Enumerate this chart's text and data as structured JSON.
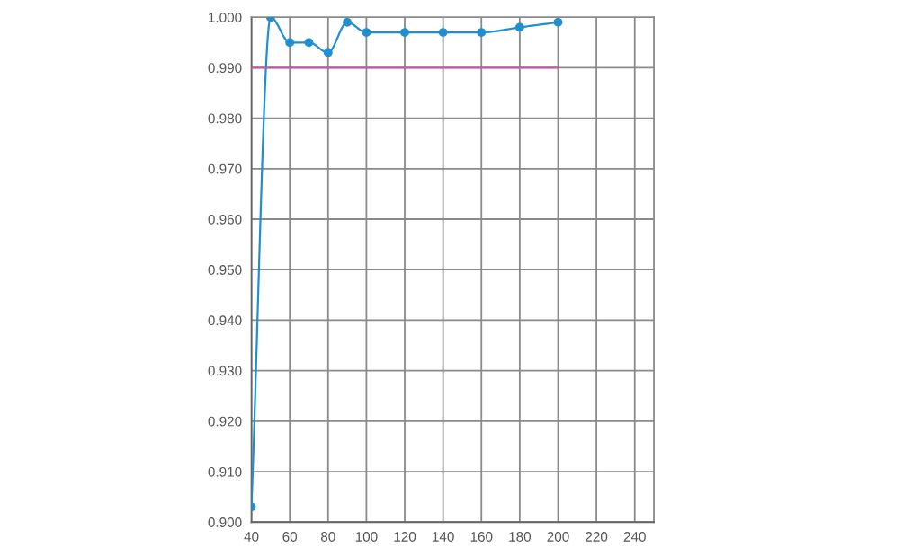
{
  "chart_data": {
    "type": "line",
    "x": [
      40,
      50,
      60,
      70,
      80,
      90,
      100,
      120,
      140,
      160,
      180,
      200
    ],
    "series": [
      {
        "color": "#1f8fcf",
        "values": [
          0.903,
          1.0,
          0.995,
          0.995,
          0.993,
          0.999,
          0.997,
          0.997,
          0.997,
          0.997,
          0.998,
          0.999
        ]
      },
      {
        "type": "line",
        "color": "#c45aa8",
        "x": [
          40,
          200
        ],
        "values": [
          0.99,
          0.99
        ],
        "marker": "none"
      }
    ],
    "xlim": [
      40,
      250
    ],
    "xticks": [
      40,
      60,
      80,
      100,
      120,
      140,
      160,
      180,
      200,
      220,
      240
    ],
    "ylim": [
      0.9,
      1.0
    ],
    "yticks": [
      {
        "value": 0.9,
        "label": "0.900"
      },
      {
        "value": 0.91,
        "label": "0.910"
      },
      {
        "value": 0.92,
        "label": "0.920"
      },
      {
        "value": 0.93,
        "label": "0.930"
      },
      {
        "value": 0.94,
        "label": "0.940"
      },
      {
        "value": 0.95,
        "label": "0.950"
      },
      {
        "value": 0.96,
        "label": "0.960"
      },
      {
        "value": 0.97,
        "label": "0.970"
      },
      {
        "value": 0.98,
        "label": "0.980"
      },
      {
        "value": 0.99,
        "label": "0.990"
      },
      {
        "value": 1.0,
        "label": "1.000"
      }
    ],
    "grid": true,
    "marker": "circle",
    "line_style": "solid"
  }
}
